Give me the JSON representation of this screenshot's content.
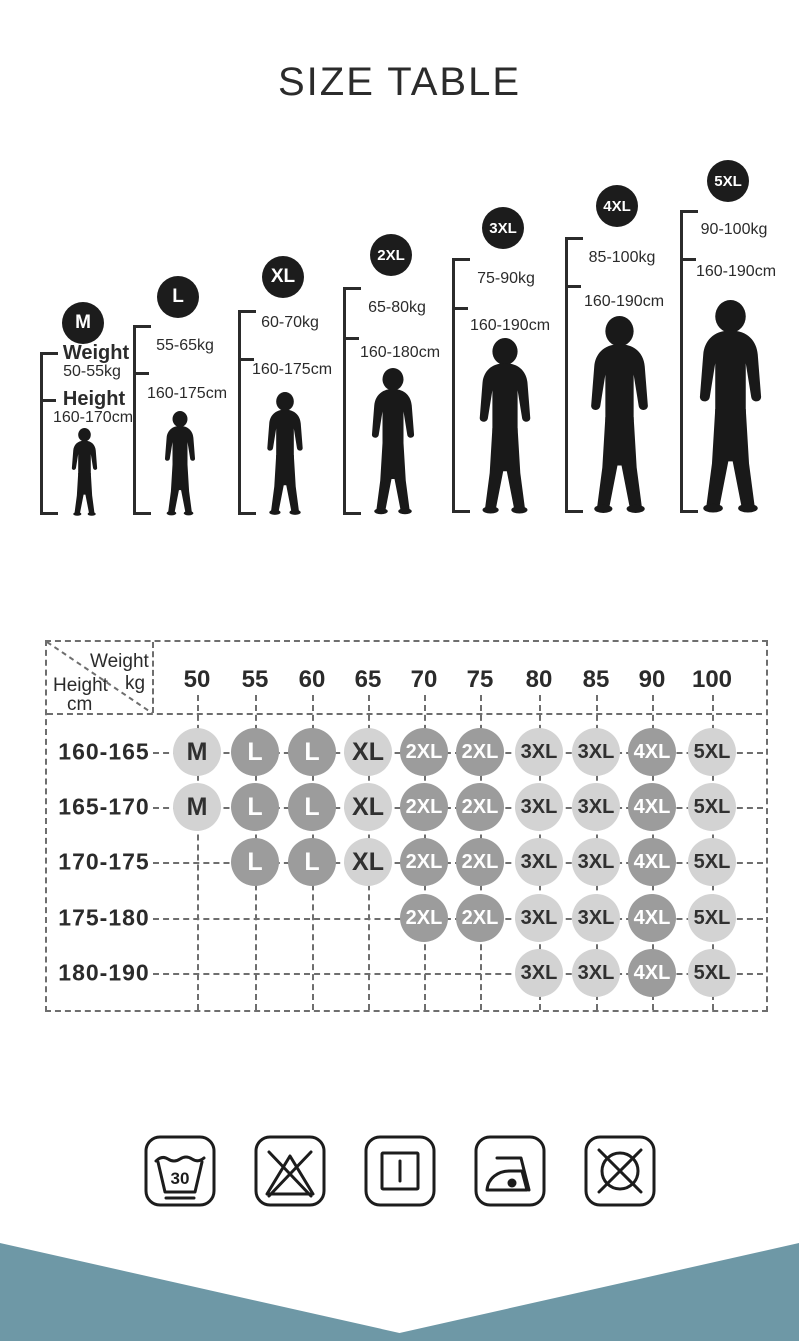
{
  "theme": {
    "accent": "#6e98a6",
    "ink": "#2b2b2b",
    "badge-bg": "#1c1c1c",
    "silhouette": "#191919",
    "dash": "#6e6e6e",
    "circle-light": "#d3d3d3",
    "circle-dark": "#9c9c9c",
    "circle-light-text": "#303030",
    "circle-dark-text": "#ffffff"
  },
  "figures": {
    "weight_label": "Weight",
    "height_label": "Height",
    "items": [
      {
        "size": "M",
        "weight": "50-55kg",
        "height": "160-170cm"
      },
      {
        "size": "L",
        "weight": "55-65kg",
        "height": "160-175cm"
      },
      {
        "size": "XL",
        "weight": "60-70kg",
        "height": "160-175cm"
      },
      {
        "size": "2XL",
        "weight": "65-80kg",
        "height": "160-180cm"
      },
      {
        "size": "3XL",
        "weight": "75-90kg",
        "height": "160-190cm"
      },
      {
        "size": "4XL",
        "weight": "85-100kg",
        "height": "160-190cm"
      },
      {
        "size": "5XL",
        "weight": "90-100kg",
        "height": "160-190cm"
      }
    ]
  },
  "chart_data": {
    "type": "table",
    "title": "SIZE TABLE",
    "corner": {
      "col_label": "Weight",
      "col_unit": "kg",
      "row_label": "Height",
      "row_unit": "cm"
    },
    "columns": [
      "50",
      "55",
      "60",
      "65",
      "70",
      "75",
      "80",
      "85",
      "90",
      "100"
    ],
    "rows": [
      {
        "label": "160-165",
        "cells": [
          "M",
          "L",
          "L",
          "XL",
          "2XL",
          "2XL",
          "3XL",
          "3XL",
          "4XL",
          "5XL"
        ]
      },
      {
        "label": "165-170",
        "cells": [
          "M",
          "L",
          "L",
          "XL",
          "2XL",
          "2XL",
          "3XL",
          "3XL",
          "4XL",
          "5XL"
        ]
      },
      {
        "label": "170-175",
        "cells": [
          "",
          "L",
          "L",
          "XL",
          "2XL",
          "2XL",
          "3XL",
          "3XL",
          "4XL",
          "5XL"
        ]
      },
      {
        "label": "175-180",
        "cells": [
          "",
          "",
          "",
          "",
          "2XL",
          "2XL",
          "3XL",
          "3XL",
          "4XL",
          "5XL"
        ]
      },
      {
        "label": "180-190",
        "cells": [
          "",
          "",
          "",
          "",
          "",
          "",
          "3XL",
          "3XL",
          "4XL",
          "5XL"
        ]
      }
    ],
    "dark_sizes": [
      "L",
      "2XL",
      "4XL"
    ],
    "light_sizes": [
      "M",
      "XL",
      "3XL",
      "5XL"
    ]
  },
  "care": {
    "wash_temp": "30",
    "icons": [
      {
        "name": "machine-wash-30"
      },
      {
        "name": "do-not-bleach"
      },
      {
        "name": "drip-dry"
      },
      {
        "name": "iron-low-heat"
      },
      {
        "name": "do-not-tumble-dry"
      }
    ]
  }
}
